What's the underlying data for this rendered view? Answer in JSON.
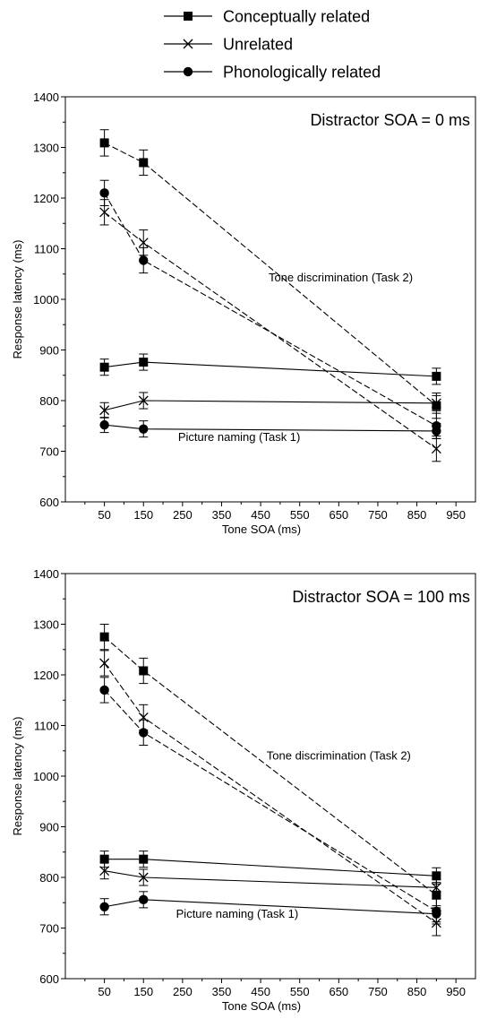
{
  "legend": {
    "items": [
      {
        "label": "Conceptually related",
        "marker": "square"
      },
      {
        "label": "Unrelated",
        "marker": "cross"
      },
      {
        "label": "Phonologically related",
        "marker": "circle"
      }
    ]
  },
  "chart_data": [
    {
      "type": "line",
      "title": "Distractor SOA = 0 ms",
      "xlabel": "Tone SOA (ms)",
      "ylabel": "Response latency (ms)",
      "xlim": [
        -50,
        1000
      ],
      "ylim": [
        600,
        1400
      ],
      "xticks": [
        50,
        150,
        250,
        350,
        450,
        550,
        650,
        750,
        850,
        950
      ],
      "yticks": [
        600,
        700,
        800,
        900,
        1000,
        1100,
        1200,
        1300,
        1400
      ],
      "grid": false,
      "annotations": [
        {
          "text": "Tone discrimination (Task 2)",
          "x": 655,
          "y": 1035
        },
        {
          "text": "Picture naming (Task 1)",
          "x": 395,
          "y": 720
        }
      ],
      "series": [
        {
          "name": "Conceptually related",
          "task": "Tone discrimination (Task 2)",
          "marker": "square",
          "dash": true,
          "x": [
            50,
            150,
            900
          ],
          "y": [
            1309,
            1270,
            790
          ],
          "err": [
            26,
            25,
            25
          ]
        },
        {
          "name": "Unrelated",
          "task": "Tone discrimination (Task 2)",
          "marker": "cross",
          "dash": true,
          "x": [
            50,
            150,
            900
          ],
          "y": [
            1172,
            1112,
            705
          ],
          "err": [
            25,
            25,
            25
          ]
        },
        {
          "name": "Phonologically related",
          "task": "Tone discrimination (Task 2)",
          "marker": "circle",
          "dash": true,
          "x": [
            50,
            150,
            900
          ],
          "y": [
            1210,
            1077,
            750
          ],
          "err": [
            25,
            25,
            25
          ]
        },
        {
          "name": "Conceptually related",
          "task": "Picture naming (Task 1)",
          "marker": "square",
          "dash": false,
          "x": [
            50,
            150,
            900
          ],
          "y": [
            866,
            876,
            848
          ],
          "err": [
            16,
            16,
            16
          ]
        },
        {
          "name": "Unrelated",
          "task": "Picture naming (Task 1)",
          "marker": "cross",
          "dash": false,
          "x": [
            50,
            150,
            900
          ],
          "y": [
            781,
            800,
            795
          ],
          "err": [
            15,
            16,
            15
          ]
        },
        {
          "name": "Phonologically related",
          "task": "Picture naming (Task 1)",
          "marker": "circle",
          "dash": false,
          "x": [
            50,
            150,
            900
          ],
          "y": [
            752,
            744,
            740
          ],
          "err": [
            15,
            16,
            15
          ]
        }
      ]
    },
    {
      "type": "line",
      "title": "Distractor SOA = 100 ms",
      "xlabel": "Tone SOA (ms)",
      "ylabel": "Response latency (ms)",
      "xlim": [
        -50,
        1000
      ],
      "ylim": [
        600,
        1400
      ],
      "xticks": [
        50,
        150,
        250,
        350,
        450,
        550,
        650,
        750,
        850,
        950
      ],
      "yticks": [
        600,
        700,
        800,
        900,
        1000,
        1100,
        1200,
        1300,
        1400
      ],
      "grid": false,
      "annotations": [
        {
          "text": "Tone discrimination (Task 2)",
          "x": 650,
          "y": 1033
        },
        {
          "text": "Picture naming (Task 1)",
          "x": 390,
          "y": 720
        }
      ],
      "series": [
        {
          "name": "Conceptually related",
          "task": "Tone discrimination (Task 2)",
          "marker": "square",
          "dash": true,
          "x": [
            50,
            150,
            900
          ],
          "y": [
            1275,
            1208,
            765
          ],
          "err": [
            25,
            25,
            25
          ]
        },
        {
          "name": "Unrelated",
          "task": "Tone discrimination (Task 2)",
          "marker": "cross",
          "dash": true,
          "x": [
            50,
            150,
            900
          ],
          "y": [
            1223,
            1116,
            710
          ],
          "err": [
            25,
            25,
            25
          ]
        },
        {
          "name": "Phonologically related",
          "task": "Tone discrimination (Task 2)",
          "marker": "circle",
          "dash": true,
          "x": [
            50,
            150,
            900
          ],
          "y": [
            1170,
            1086,
            733
          ],
          "err": [
            25,
            25,
            25
          ]
        },
        {
          "name": "Conceptually related",
          "task": "Picture naming (Task 1)",
          "marker": "square",
          "dash": false,
          "x": [
            50,
            150,
            900
          ],
          "y": [
            836,
            836,
            803
          ],
          "err": [
            16,
            16,
            16
          ]
        },
        {
          "name": "Unrelated",
          "task": "Picture naming (Task 1)",
          "marker": "cross",
          "dash": false,
          "x": [
            50,
            150,
            900
          ],
          "y": [
            813,
            800,
            780
          ],
          "err": [
            16,
            16,
            16
          ]
        },
        {
          "name": "Phonologically related",
          "task": "Picture naming (Task 1)",
          "marker": "circle",
          "dash": false,
          "x": [
            50,
            150,
            900
          ],
          "y": [
            742,
            756,
            728
          ],
          "err": [
            16,
            16,
            16
          ]
        }
      ]
    }
  ]
}
